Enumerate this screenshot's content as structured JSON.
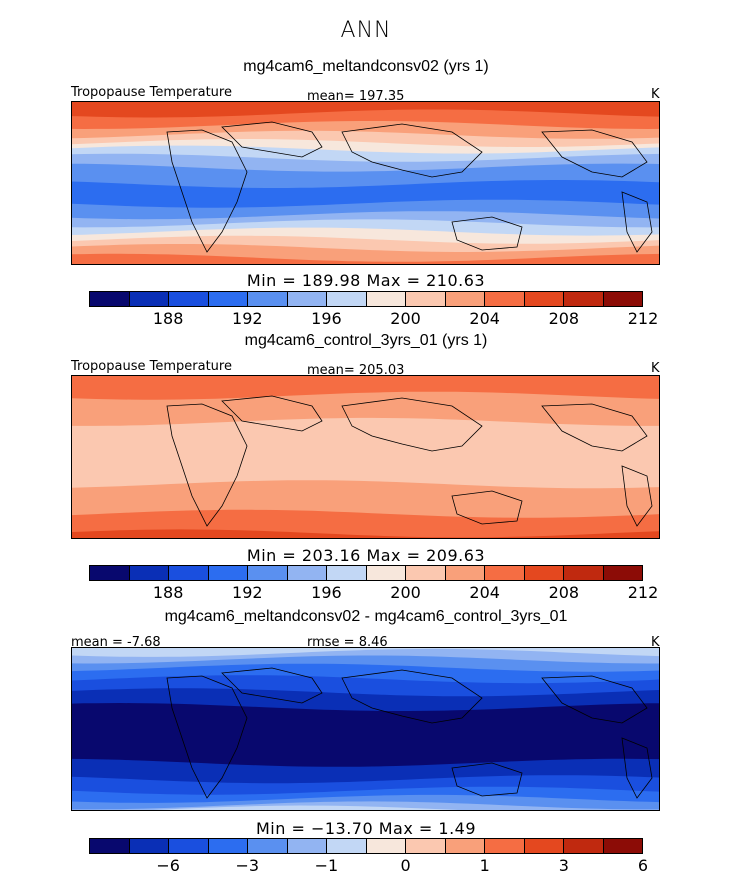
{
  "figure": {
    "season": "ANN"
  },
  "palette": [
    "#08086e",
    "#0a2fb6",
    "#1a4fdf",
    "#2c6df0",
    "#5a90f0",
    "#92b4f2",
    "#c2d7f5",
    "#f7e7dc",
    "#fbc8b0",
    "#f9a07a",
    "#f56d43",
    "#e4481f",
    "#c0290f",
    "#8c0c06"
  ],
  "panels": [
    {
      "title": "mg4cam6_meltandconsv02 (yrs 1)",
      "left_label": "Tropopause Temperature",
      "center_label": "mean= 197.35",
      "units": "K",
      "minmax": "Min = 189.98 Max = 210.63",
      "ticks": [
        "188",
        "192",
        "196",
        "200",
        "204",
        "208",
        "212"
      ],
      "field": "exp"
    },
    {
      "title": "mg4cam6_control_3yrs_01 (yrs 1)",
      "left_label": "Tropopause Temperature",
      "center_label": "mean= 205.03",
      "units": "K",
      "minmax": "Min = 203.16 Max = 209.63",
      "ticks": [
        "188",
        "192",
        "196",
        "200",
        "204",
        "208",
        "212"
      ],
      "field": "ctl"
    },
    {
      "title": "mg4cam6_meltandconsv02 - mg4cam6_control_3yrs_01",
      "left_label": "mean = -7.68",
      "center_label": "rmse = 8.46",
      "units": "K",
      "minmax": "Min = −13.70 Max = 1.49",
      "ticks": [
        "−6",
        "−3",
        "−1",
        "0",
        "1",
        "3",
        "6"
      ],
      "field": "diff"
    }
  ]
}
